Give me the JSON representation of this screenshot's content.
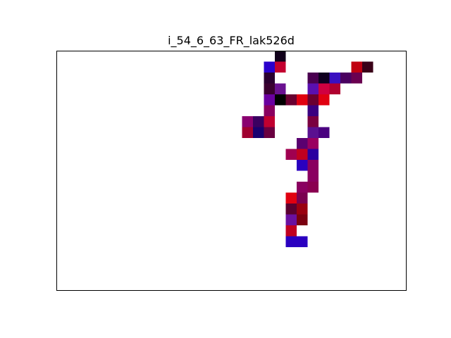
{
  "chart_data": {
    "type": "heatmap",
    "title": "i_54_6_63_FR_lak526d",
    "grid": false,
    "axes_visible": false,
    "ncols": 32,
    "nrows": 22,
    "cells": [
      {
        "col": 20,
        "row": 0,
        "color": "#10001a"
      },
      {
        "col": 19,
        "row": 1,
        "color": "#2a00cc"
      },
      {
        "col": 20,
        "row": 1,
        "color": "#c40030"
      },
      {
        "col": 27,
        "row": 1,
        "color": "#c00010"
      },
      {
        "col": 28,
        "row": 1,
        "color": "#3a0018"
      },
      {
        "col": 19,
        "row": 2,
        "color": "#2a0030"
      },
      {
        "col": 23,
        "row": 2,
        "color": "#4a0050"
      },
      {
        "col": 24,
        "row": 2,
        "color": "#100020"
      },
      {
        "col": 25,
        "row": 2,
        "color": "#3a10c0"
      },
      {
        "col": 26,
        "row": 2,
        "color": "#4a0060"
      },
      {
        "col": 27,
        "row": 2,
        "color": "#6a0050"
      },
      {
        "col": 19,
        "row": 3,
        "color": "#3a0030"
      },
      {
        "col": 20,
        "row": 3,
        "color": "#6a1090"
      },
      {
        "col": 23,
        "row": 3,
        "color": "#5a10b0"
      },
      {
        "col": 24,
        "row": 3,
        "color": "#d00040"
      },
      {
        "col": 25,
        "row": 3,
        "color": "#b00030"
      },
      {
        "col": 19,
        "row": 4,
        "color": "#6a00a0"
      },
      {
        "col": 20,
        "row": 4,
        "color": "#000000"
      },
      {
        "col": 21,
        "row": 4,
        "color": "#6a0030"
      },
      {
        "col": 22,
        "row": 4,
        "color": "#e00010"
      },
      {
        "col": 23,
        "row": 4,
        "color": "#6a0030"
      },
      {
        "col": 24,
        "row": 4,
        "color": "#e00010"
      },
      {
        "col": 19,
        "row": 5,
        "color": "#8a0060"
      },
      {
        "col": 23,
        "row": 5,
        "color": "#3a0080"
      },
      {
        "col": 17,
        "row": 6,
        "color": "#8a0070"
      },
      {
        "col": 18,
        "row": 6,
        "color": "#3a0060"
      },
      {
        "col": 19,
        "row": 6,
        "color": "#c00030"
      },
      {
        "col": 23,
        "row": 6,
        "color": "#7a0040"
      },
      {
        "col": 17,
        "row": 7,
        "color": "#a00030"
      },
      {
        "col": 18,
        "row": 7,
        "color": "#1a0070"
      },
      {
        "col": 19,
        "row": 7,
        "color": "#6a0040"
      },
      {
        "col": 23,
        "row": 7,
        "color": "#5a1090"
      },
      {
        "col": 24,
        "row": 7,
        "color": "#4a0080"
      },
      {
        "col": 22,
        "row": 8,
        "color": "#5a0070"
      },
      {
        "col": 23,
        "row": 8,
        "color": "#9a0060"
      },
      {
        "col": 21,
        "row": 9,
        "color": "#a00050"
      },
      {
        "col": 22,
        "row": 9,
        "color": "#c00020"
      },
      {
        "col": 23,
        "row": 9,
        "color": "#2a00a0"
      },
      {
        "col": 22,
        "row": 10,
        "color": "#2a00c0"
      },
      {
        "col": 23,
        "row": 10,
        "color": "#8a0060"
      },
      {
        "col": 23,
        "row": 11,
        "color": "#8a0060"
      },
      {
        "col": 22,
        "row": 12,
        "color": "#8a0060"
      },
      {
        "col": 23,
        "row": 12,
        "color": "#8a0050"
      },
      {
        "col": 21,
        "row": 13,
        "color": "#e00010"
      },
      {
        "col": 22,
        "row": 13,
        "color": "#7a0050"
      },
      {
        "col": 21,
        "row": 14,
        "color": "#5a0030"
      },
      {
        "col": 22,
        "row": 14,
        "color": "#9a0010"
      },
      {
        "col": 21,
        "row": 15,
        "color": "#6a10a0"
      },
      {
        "col": 22,
        "row": 15,
        "color": "#7a0010"
      },
      {
        "col": 21,
        "row": 16,
        "color": "#c00020"
      },
      {
        "col": 21,
        "row": 17,
        "color": "#2a00c0"
      },
      {
        "col": 22,
        "row": 17,
        "color": "#2a00c0"
      }
    ]
  }
}
